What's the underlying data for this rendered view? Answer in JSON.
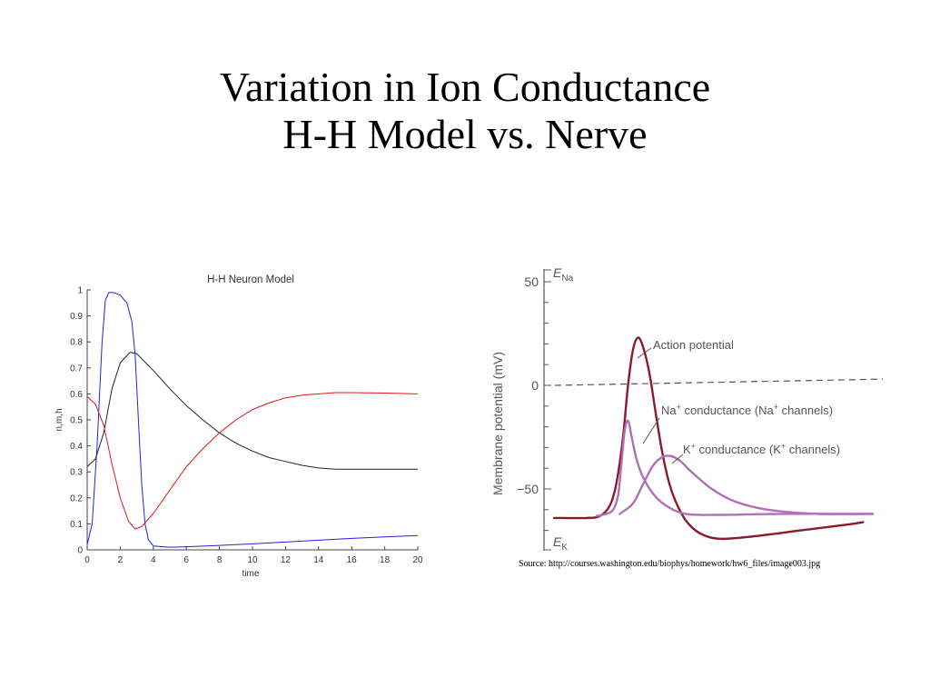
{
  "slide": {
    "title_line1": "Variation in Ion Conductance",
    "title_line2": "H-H Model vs. Nerve"
  },
  "chart_data": [
    {
      "type": "line",
      "title": "H-H Neuron Model",
      "xlabel": "time",
      "ylabel": "n,m,h",
      "xlim": [
        0,
        20
      ],
      "ylim": [
        0,
        1
      ],
      "xticks": [
        0,
        2,
        4,
        6,
        8,
        10,
        12,
        14,
        16,
        18,
        20
      ],
      "yticks": [
        0,
        0.1,
        0.2,
        0.3,
        0.4,
        0.5,
        0.6,
        0.7,
        0.8,
        0.9,
        1
      ],
      "grid": false,
      "series": [
        {
          "color": "#2020e0",
          "points": [
            [
              0,
              0.02
            ],
            [
              0.3,
              0.1
            ],
            [
              0.6,
              0.4
            ],
            [
              0.9,
              0.8
            ],
            [
              1.1,
              0.96
            ],
            [
              1.3,
              0.99
            ],
            [
              1.6,
              0.99
            ],
            [
              2,
              0.98
            ],
            [
              2.4,
              0.95
            ],
            [
              2.7,
              0.88
            ],
            [
              2.9,
              0.75
            ],
            [
              3.1,
              0.5
            ],
            [
              3.3,
              0.25
            ],
            [
              3.5,
              0.1
            ],
            [
              3.7,
              0.04
            ],
            [
              4,
              0.015
            ],
            [
              5,
              0.01
            ],
            [
              6,
              0.012
            ],
            [
              8,
              0.017
            ],
            [
              10,
              0.023
            ],
            [
              12,
              0.03
            ],
            [
              14,
              0.037
            ],
            [
              16,
              0.044
            ],
            [
              18,
              0.05
            ],
            [
              20,
              0.055
            ]
          ]
        },
        {
          "color": "#222222",
          "points": [
            [
              0,
              0.32
            ],
            [
              0.5,
              0.35
            ],
            [
              1,
              0.45
            ],
            [
              1.5,
              0.62
            ],
            [
              2,
              0.72
            ],
            [
              2.6,
              0.76
            ],
            [
              3,
              0.755
            ],
            [
              4,
              0.69
            ],
            [
              5,
              0.62
            ],
            [
              6,
              0.555
            ],
            [
              7,
              0.5
            ],
            [
              8,
              0.45
            ],
            [
              9,
              0.41
            ],
            [
              10,
              0.38
            ],
            [
              11,
              0.355
            ],
            [
              12,
              0.34
            ],
            [
              13,
              0.325
            ],
            [
              14,
              0.315
            ],
            [
              15,
              0.31
            ],
            [
              16,
              0.31
            ],
            [
              18,
              0.31
            ],
            [
              20,
              0.31
            ]
          ]
        },
        {
          "color": "#e01818",
          "points": [
            [
              0,
              0.59
            ],
            [
              0.5,
              0.56
            ],
            [
              1,
              0.48
            ],
            [
              1.5,
              0.33
            ],
            [
              2,
              0.2
            ],
            [
              2.5,
              0.11
            ],
            [
              2.9,
              0.08
            ],
            [
              3.3,
              0.09
            ],
            [
              4,
              0.14
            ],
            [
              5,
              0.23
            ],
            [
              6,
              0.32
            ],
            [
              7,
              0.39
            ],
            [
              8,
              0.45
            ],
            [
              9,
              0.5
            ],
            [
              10,
              0.54
            ],
            [
              11,
              0.565
            ],
            [
              12,
              0.585
            ],
            [
              13,
              0.595
            ],
            [
              14,
              0.6
            ],
            [
              15,
              0.605
            ],
            [
              16,
              0.605
            ],
            [
              18,
              0.603
            ],
            [
              20,
              0.6
            ]
          ]
        }
      ]
    },
    {
      "type": "line",
      "title": "",
      "ylabel": "Membrane potential (mV)",
      "yticks": [
        50,
        0,
        -50
      ],
      "ylim": [
        -80,
        55
      ],
      "xlim": [
        0,
        100
      ],
      "markers": {
        "e_na": "E",
        "e_na_sub": "Na",
        "e_k": "E",
        "e_k_sub": "K"
      },
      "annotations": {
        "action_potential": "Action potential",
        "na_prefix": "Na",
        "na_mid": " conductance (Na",
        "na_suffix": " channels)",
        "k_prefix": "K",
        "k_mid": " conductance (K",
        "k_suffix": " channels)",
        "plus": "+"
      },
      "threshold_mv": 2,
      "series": [
        {
          "name": "Action potential",
          "color": "#8b1a2a",
          "points": [
            [
              0,
              -64
            ],
            [
              10,
              -64
            ],
            [
              14,
              -63
            ],
            [
              17,
              -58
            ],
            [
              19,
              -47
            ],
            [
              21,
              -25
            ],
            [
              22.5,
              0
            ],
            [
              24,
              17
            ],
            [
              25.5,
              23
            ],
            [
              27,
              19
            ],
            [
              29,
              6
            ],
            [
              31,
              -14
            ],
            [
              33,
              -33
            ],
            [
              35,
              -47
            ],
            [
              37,
              -56
            ],
            [
              40,
              -65
            ],
            [
              44,
              -71
            ],
            [
              50,
              -74
            ],
            [
              60,
              -73
            ],
            [
              75,
              -70
            ],
            [
              90,
              -67
            ],
            [
              94,
              -66
            ]
          ]
        },
        {
          "name": "Na+ conductance (Na+ channels)",
          "color": "#b070b8",
          "points": [
            [
              13,
              -63
            ],
            [
              16,
              -62
            ],
            [
              18,
              -60
            ],
            [
              19.5,
              -53
            ],
            [
              20.5,
              -38
            ],
            [
              21.5,
              -22
            ],
            [
              22.5,
              -17
            ],
            [
              23.5,
              -24
            ],
            [
              25,
              -35
            ],
            [
              27,
              -44
            ],
            [
              30,
              -52
            ],
            [
              34,
              -58
            ],
            [
              40,
              -62
            ],
            [
              50,
              -62.5
            ],
            [
              70,
              -62
            ],
            [
              97,
              -62
            ]
          ]
        },
        {
          "name": "K+ conductance (K+ channels)",
          "color": "#b070b8",
          "points": [
            [
              20,
              -62
            ],
            [
              24,
              -57
            ],
            [
              27,
              -48
            ],
            [
              30,
              -39
            ],
            [
              32.5,
              -35
            ],
            [
              35,
              -34
            ],
            [
              38,
              -36
            ],
            [
              42,
              -42
            ],
            [
              48,
              -50
            ],
            [
              55,
              -56
            ],
            [
              65,
              -60
            ],
            [
              80,
              -62
            ],
            [
              97,
              -62
            ]
          ]
        }
      ]
    }
  ],
  "source": {
    "text": "Source: http://courses.washington.edu/biophys/homework/hw6_files/image003.jpg"
  }
}
